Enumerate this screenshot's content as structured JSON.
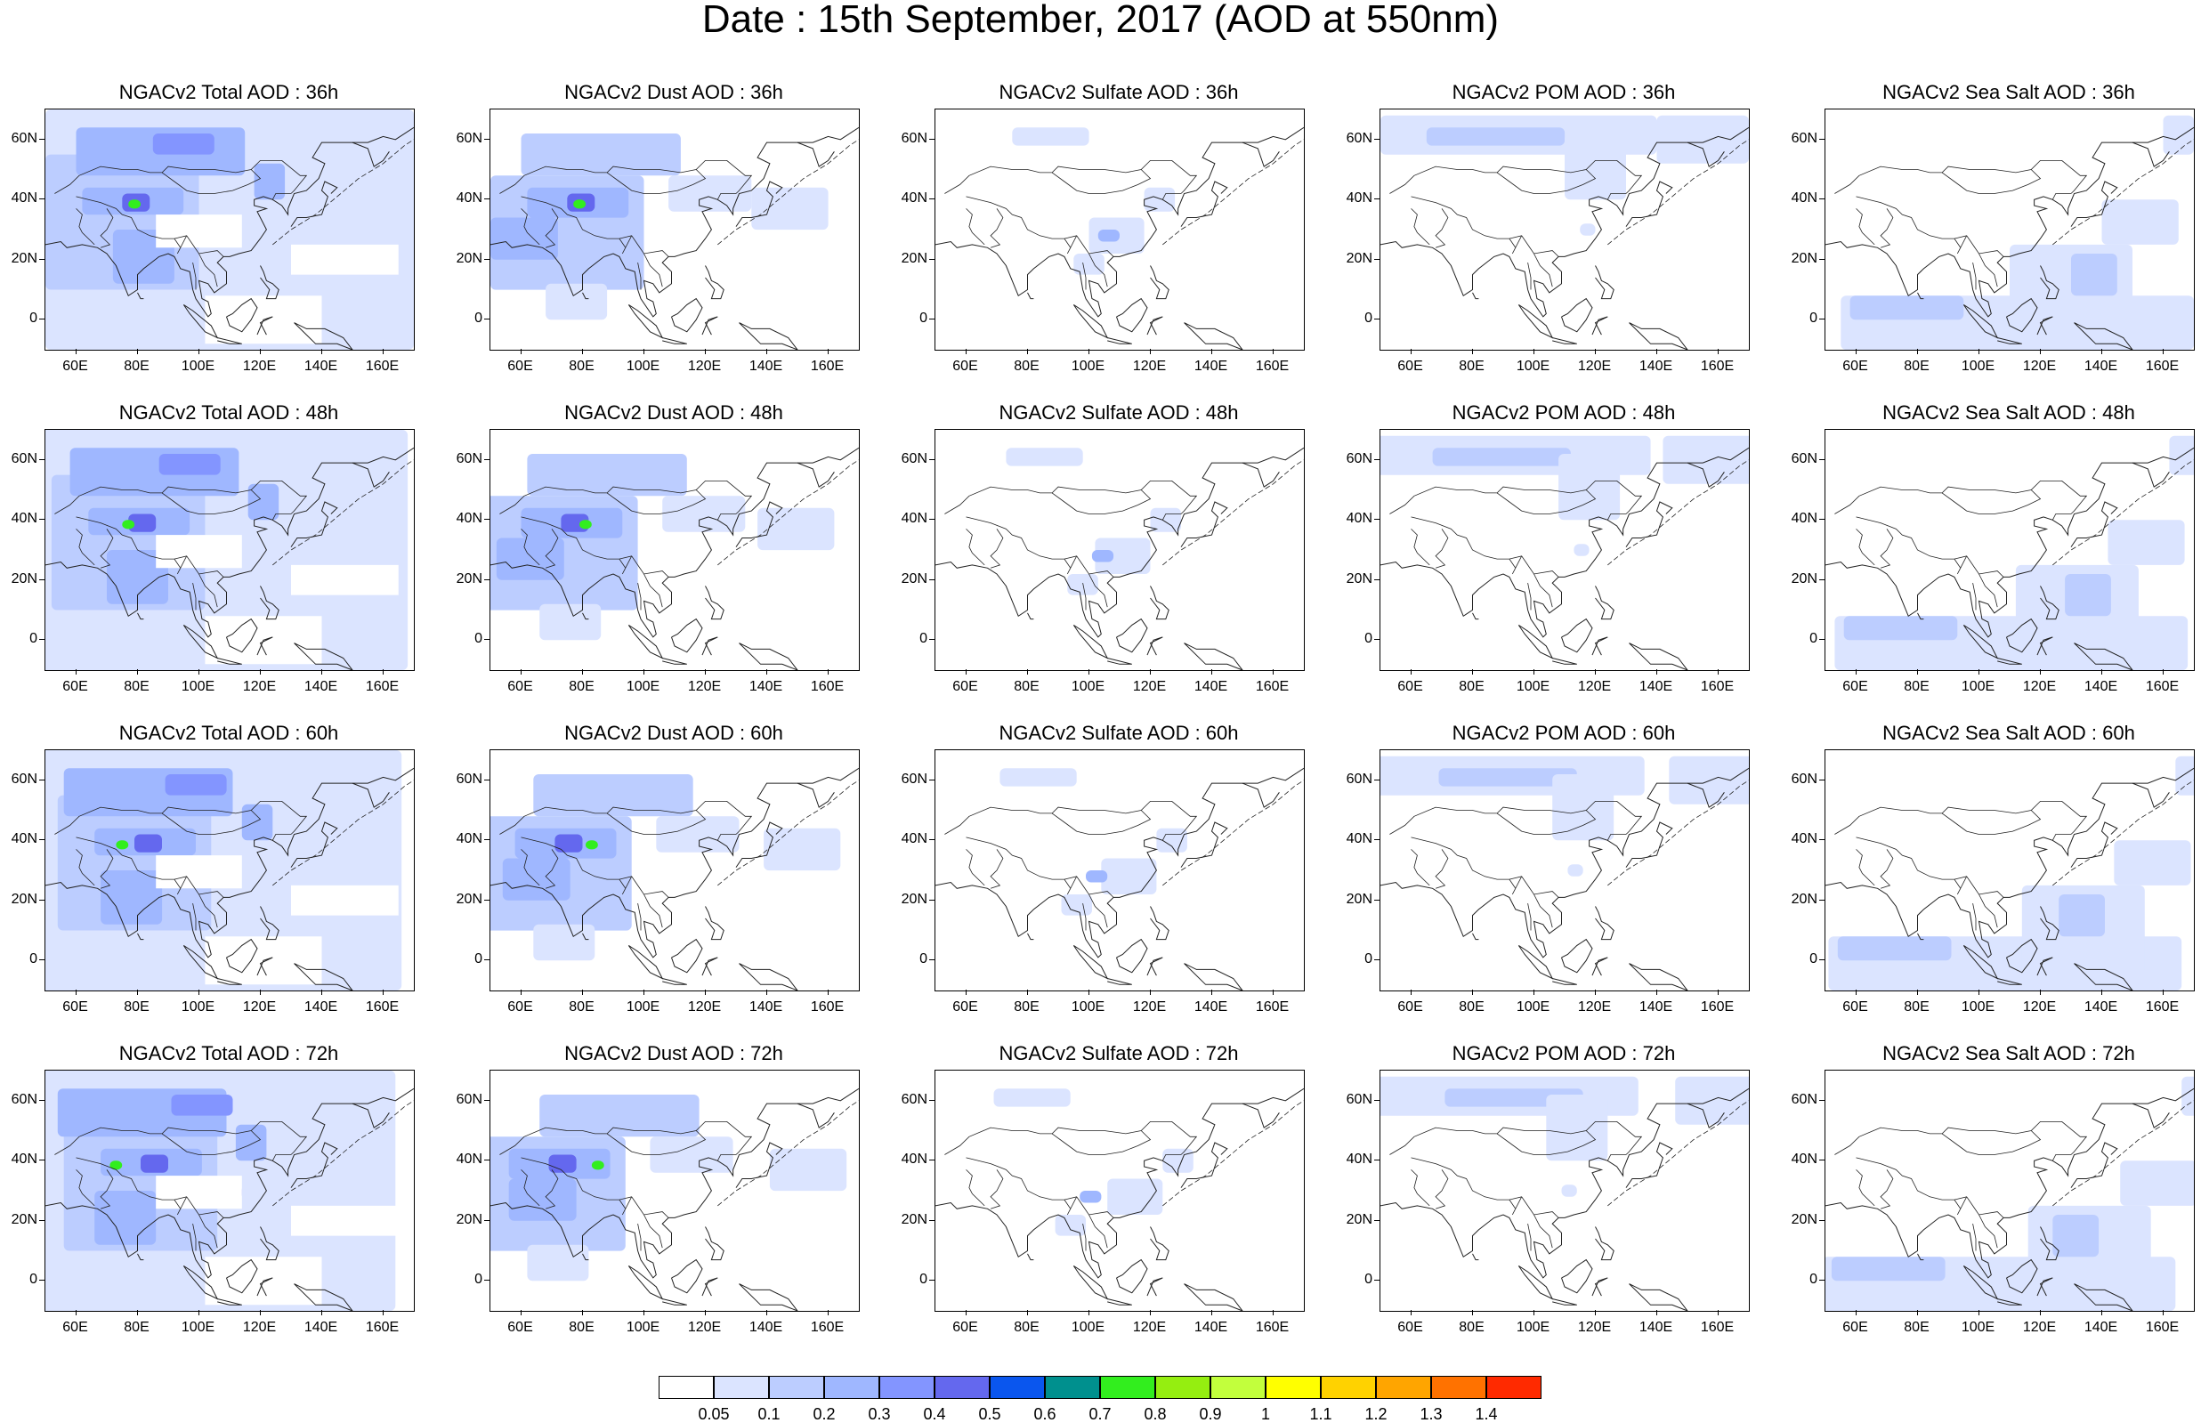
{
  "title": "Date : 15th September, 2017 (AOD at 550nm)",
  "panel_titles": [
    [
      "NGACv2 Total AOD : 36h",
      "NGACv2 Dust AOD : 36h",
      "NGACv2 Sulfate AOD : 36h",
      "NGACv2 POM AOD : 36h",
      "NGACv2 Sea Salt AOD : 36h"
    ],
    [
      "NGACv2 Total AOD : 48h",
      "NGACv2 Dust AOD : 48h",
      "NGACv2 Sulfate AOD : 48h",
      "NGACv2 POM AOD : 48h",
      "NGACv2 Sea Salt AOD : 48h"
    ],
    [
      "NGACv2 Total AOD : 60h",
      "NGACv2 Dust AOD : 60h",
      "NGACv2 Sulfate AOD : 60h",
      "NGACv2 POM AOD : 60h",
      "NGACv2 Sea Salt AOD : 60h"
    ],
    [
      "NGACv2 Total AOD : 72h",
      "NGACv2 Dust AOD : 72h",
      "NGACv2 Sulfate AOD : 72h",
      "NGACv2 POM AOD : 72h",
      "NGACv2 Sea Salt  AOD : 72h"
    ]
  ],
  "lat_labels": [
    "60N",
    "40N",
    "20N",
    "0"
  ],
  "lon_labels": [
    "60E",
    "80E",
    "100E",
    "120E",
    "140E",
    "160E"
  ],
  "map_extent": {
    "lon": [
      50,
      170
    ],
    "lat": [
      -10,
      70
    ]
  },
  "colorbar": {
    "colors": [
      "#ffffff",
      "#dbe4ff",
      "#bccdff",
      "#9fb7ff",
      "#8395ff",
      "#6468ee",
      "#0a56ee",
      "#00908e",
      "#32ee1e",
      "#95ee10",
      "#c2ff3c",
      "#ffff00",
      "#ffd200",
      "#ffa500",
      "#ff7200",
      "#ff2a00"
    ],
    "labels": [
      "0.05",
      "0.1",
      "0.2",
      "0.3",
      "0.4",
      "0.5",
      "0.6",
      "0.7",
      "0.8",
      "0.9",
      "1",
      "1.1",
      "1.2",
      "1.3",
      "1.4"
    ]
  }
}
